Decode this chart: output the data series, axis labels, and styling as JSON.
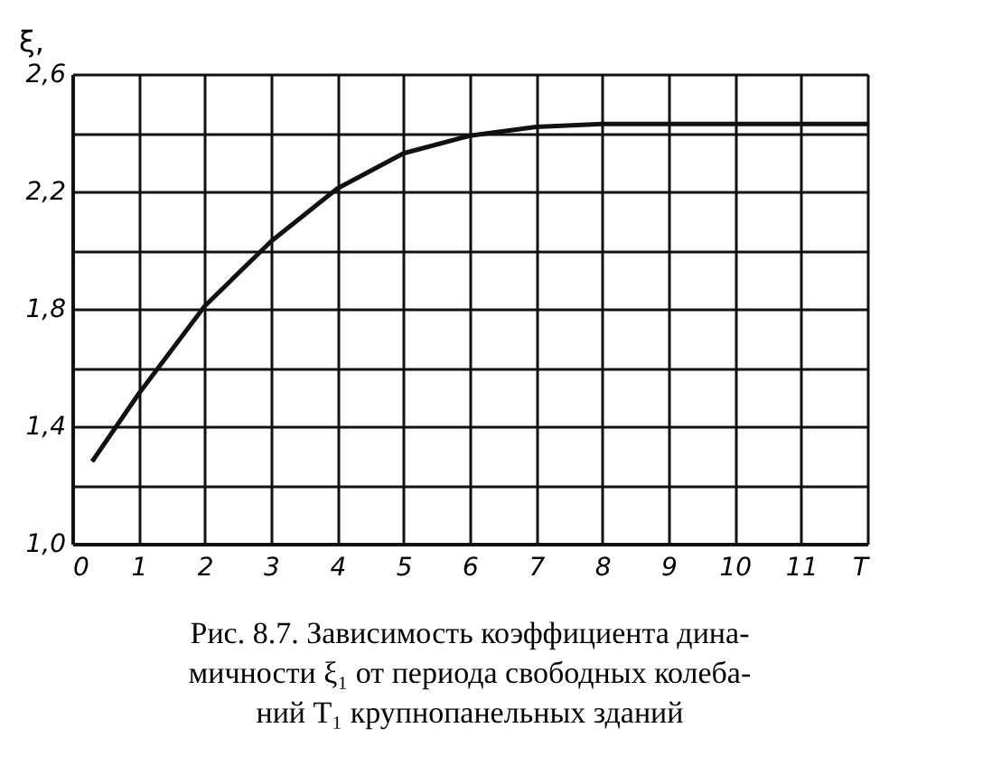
{
  "chart_data": {
    "type": "line",
    "ylabel": "ξ,",
    "x": [
      0.3,
      1,
      2,
      3,
      4,
      5,
      6,
      7,
      8,
      9,
      10,
      11,
      12
    ],
    "series": [
      {
        "color": "#111111",
        "values": [
          1.28,
          1.51,
          1.81,
          2.03,
          2.21,
          2.33,
          2.39,
          2.42,
          2.43,
          2.43,
          2.43,
          2.43,
          2.43
        ]
      }
    ],
    "xlim": [
      0,
      12
    ],
    "xticks": [
      0,
      1,
      2,
      3,
      4,
      5,
      6,
      7,
      8,
      9,
      10,
      11,
      {
        "value": 12,
        "label": "T"
      }
    ],
    "ylim": [
      1.0,
      2.6
    ],
    "yticks": [
      "1,0",
      {
        "value": 1.2,
        "label": null
      },
      {
        "value": 1.4,
        "label": "1,4"
      },
      {
        "value": 1.6,
        "label": null
      },
      {
        "value": 1.8,
        "label": "1,8"
      },
      {
        "value": 2.0,
        "label": null
      },
      {
        "value": 2.2,
        "label": "2,2"
      },
      {
        "value": 2.4,
        "label": null
      },
      {
        "value": 2.6,
        "label": "2,6"
      }
    ],
    "grid": true,
    "marker": "none",
    "line_style": "solid",
    "annotations": [
      "Рис. 8.7. Зависимость коэффициента дина-\nмичности ξ₁ от периода свободных колеба-\nний T₁ крупнопанельных зданий"
    ]
  }
}
